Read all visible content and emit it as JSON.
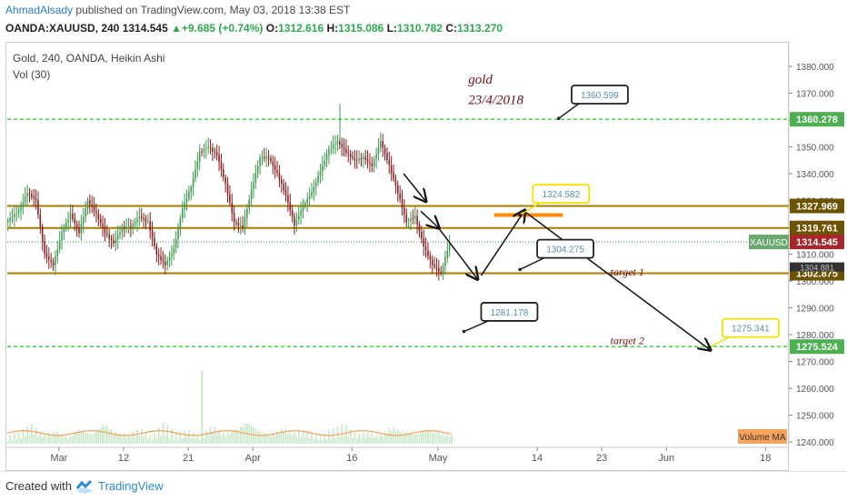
{
  "header": {
    "author": "AhmadAlsady",
    "published_text": "published on TradingView.com, May 03, 2018 13:38 EST",
    "symbol_line": "OANDA:XAUUSD, 240",
    "last": "1314.545",
    "change": "+9.685 (+0.74%)",
    "o_label": "O:",
    "o": "1312.616",
    "h_label": "H:",
    "h": "1315.086",
    "l_label": "L:",
    "l": "1310.782",
    "c_label": "C:",
    "c": "1313.270"
  },
  "footer": {
    "created_with": "Created with",
    "brand": "TradingView"
  },
  "colors": {
    "up": "#3d9a4d",
    "down": "#8b1a1a",
    "gold_line": "#a67c00",
    "green_dash": "#33cc33",
    "orange": "#ff8800",
    "yellow": "#f5e100",
    "volume": "#c9e8cc",
    "volume_ma": "#f2a257",
    "annotation": "#6b0f1a"
  },
  "chart_data": {
    "type": "candlestick",
    "chart_style": "Heikin Ashi",
    "legend": [
      "Gold, 240, OANDA, Heikin Ashi",
      "Vol (30)"
    ],
    "y_axis": {
      "ticks": [
        1240,
        1250,
        1260,
        1270,
        1280,
        1290,
        1300,
        1310,
        1320,
        1330,
        1340,
        1350,
        1360,
        1370,
        1380
      ],
      "tick_labels": [
        "1240.000",
        "1250.000",
        "1260.000",
        "1270.000",
        "1280.000",
        "1290.000",
        "1300.000",
        "1310.000",
        "1320.000",
        "1330.000",
        "1340.000",
        "1350.000",
        "1360.000",
        "1370.000",
        "1380.000"
      ],
      "range": [
        1237,
        1386
      ]
    },
    "x_axis": {
      "range": [
        0,
        103
      ],
      "ticks": [
        {
          "label": "Mar",
          "t": 12
        },
        {
          "label": "12",
          "t": 27
        },
        {
          "label": "21",
          "t": 42
        },
        {
          "label": "Apr",
          "t": 57
        },
        {
          "label": "16",
          "t": 80
        },
        {
          "label": "May",
          "t": 100
        },
        {
          "label": "14",
          "t": 123
        },
        {
          "label": "23",
          "t": 138
        },
        {
          "label": "Jun",
          "t": 153
        },
        {
          "label": "18",
          "t": 176
        }
      ],
      "visible_range": [
        0,
        181
      ]
    },
    "price_path": [
      [
        0,
        1322
      ],
      [
        3,
        1326
      ],
      [
        5,
        1333
      ],
      [
        7,
        1330
      ],
      [
        9,
        1310
      ],
      [
        11,
        1306
      ],
      [
        13,
        1318
      ],
      [
        15,
        1325
      ],
      [
        17,
        1318
      ],
      [
        19,
        1330
      ],
      [
        21,
        1325
      ],
      [
        23,
        1318
      ],
      [
        25,
        1314
      ],
      [
        27,
        1320
      ],
      [
        29,
        1320
      ],
      [
        31,
        1324
      ],
      [
        33,
        1322
      ],
      [
        35,
        1310
      ],
      [
        37,
        1306
      ],
      [
        39,
        1312
      ],
      [
        41,
        1327
      ],
      [
        43,
        1335
      ],
      [
        45,
        1348
      ],
      [
        47,
        1350
      ],
      [
        49,
        1347
      ],
      [
        51,
        1336
      ],
      [
        53,
        1322
      ],
      [
        55,
        1320
      ],
      [
        57,
        1334
      ],
      [
        59,
        1346
      ],
      [
        61,
        1346
      ],
      [
        63,
        1340
      ],
      [
        65,
        1332
      ],
      [
        67,
        1321
      ],
      [
        69,
        1328
      ],
      [
        71,
        1333
      ],
      [
        73,
        1341
      ],
      [
        75,
        1349
      ],
      [
        77,
        1352
      ],
      [
        79,
        1348
      ],
      [
        81,
        1345
      ],
      [
        83,
        1346
      ],
      [
        85,
        1343
      ],
      [
        87,
        1352
      ],
      [
        89,
        1343
      ],
      [
        91,
        1333
      ],
      [
        93,
        1322
      ],
      [
        95,
        1324
      ],
      [
        97,
        1313
      ],
      [
        99,
        1306
      ],
      [
        101,
        1303
      ],
      [
        103,
        1314
      ]
    ],
    "volume": {
      "path": [
        0.1,
        0.15,
        0.26,
        0.12,
        0.18,
        0.08,
        0.22,
        0.14,
        0.3,
        0.16,
        0.12,
        0.2,
        0.1,
        0.28,
        0.13,
        0.18,
        0.09,
        0.24,
        0.14,
        0.2,
        0.33,
        0.18,
        0.12,
        0.22,
        0.15,
        0.17,
        0.1,
        0.19,
        0.26,
        0.13,
        0.16,
        0.11,
        0.24,
        0.18,
        0.14,
        0.21,
        0.15,
        0.12
      ],
      "spike": {
        "t": 45,
        "v": 0.62
      },
      "ma_level": 0.09
    },
    "horizontal_levels": [
      {
        "price": 1360.278,
        "label": "1360.278",
        "style": "green_dash"
      },
      {
        "price": 1327.969,
        "label": "1327.969",
        "style": "gold_line"
      },
      {
        "price": 1319.761,
        "label": "1319.761",
        "style": "gold_line"
      },
      {
        "price": 1302.875,
        "label": "1302.875",
        "style": "gold_line"
      },
      {
        "price": 1275.524,
        "label": "1275.524",
        "style": "green_dash"
      }
    ],
    "price_tags": [
      {
        "label": "XAUUSD",
        "value": "1314.545",
        "price": 1314.545
      },
      {
        "label": "",
        "value": "1304.881",
        "price": 1304.881
      }
    ],
    "orange_zone": {
      "price": 1324.58,
      "t_start": 113,
      "t_end": 129
    },
    "callouts": [
      {
        "text": "1360.599",
        "price": 1360.599,
        "t": 128,
        "box_t": 131,
        "box_price": 1369.5,
        "border": "#222"
      },
      {
        "text": "1324.582",
        "price": 1324.582,
        "t": 119,
        "box_t": 122,
        "box_price": 1332.5,
        "border": "#f0e200"
      },
      {
        "text": "1304.275",
        "price": 1304.275,
        "t": 119,
        "box_t": 123,
        "box_price": 1312.0,
        "border": "#222"
      },
      {
        "text": "1281.178",
        "price": 1281.178,
        "t": 106,
        "box_t": 110,
        "box_price": 1288.5,
        "border": "#222"
      },
      {
        "text": "1275.341",
        "price": 1275.341,
        "t": 163,
        "box_t": 166,
        "box_price": 1282.5,
        "border": "#f0e200"
      }
    ],
    "annotations": [
      {
        "text": "gold",
        "t": 107,
        "price": 1373.5,
        "size": 15
      },
      {
        "text": "23/4/2018",
        "t": 107,
        "price": 1366,
        "size": 15
      },
      {
        "text": "target 1",
        "t": 140,
        "price": 1302,
        "size": 12
      },
      {
        "text": "target 2",
        "t": 140,
        "price": 1276.5,
        "size": 12
      }
    ],
    "arrows": [
      {
        "from": [
          92,
          1340
        ],
        "to": [
          97,
          1330
        ]
      },
      {
        "from": [
          96,
          1326
        ],
        "to": [
          100,
          1320
        ]
      },
      {
        "from": [
          100,
          1320
        ],
        "to": [
          109,
          1301
        ]
      },
      {
        "from": [
          110,
          1302
        ],
        "to": [
          120,
          1326
        ]
      },
      {
        "from": [
          120,
          1326
        ],
        "to": [
          163,
          1274.5
        ]
      }
    ],
    "volume_ma_label": "Volume MA"
  }
}
